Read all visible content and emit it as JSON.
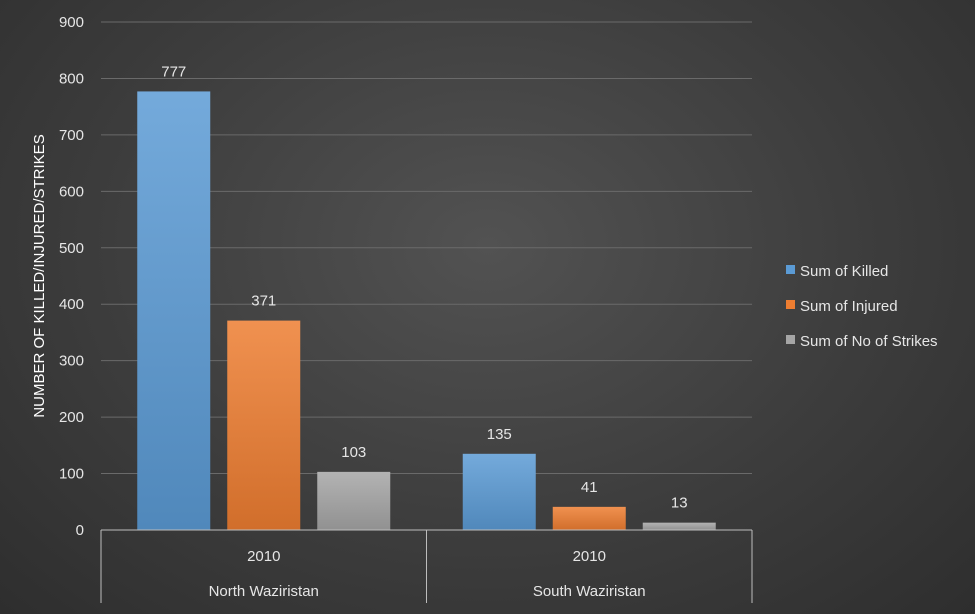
{
  "chart_data": {
    "type": "bar",
    "title": "",
    "xlabel": "",
    "ylabel": "NUMBER OF KILLED/INJURED/STRIKES",
    "ylim": [
      0,
      900
    ],
    "yticks": [
      0,
      100,
      200,
      300,
      400,
      500,
      600,
      700,
      800,
      900
    ],
    "grid": true,
    "legend_position": "right",
    "categories": [
      {
        "group": "North Waziristan",
        "label": "2010"
      },
      {
        "group": "South Waziristan",
        "label": "2010"
      }
    ],
    "series": [
      {
        "name": "Sum of Killed",
        "color": "#5b9bd5",
        "values": [
          777,
          135
        ]
      },
      {
        "name": "Sum of Injured",
        "color": "#ed7d31",
        "values": [
          371,
          41
        ]
      },
      {
        "name": "Sum of No of Strikes",
        "color": "#a5a5a5",
        "values": [
          103,
          13
        ]
      }
    ]
  }
}
